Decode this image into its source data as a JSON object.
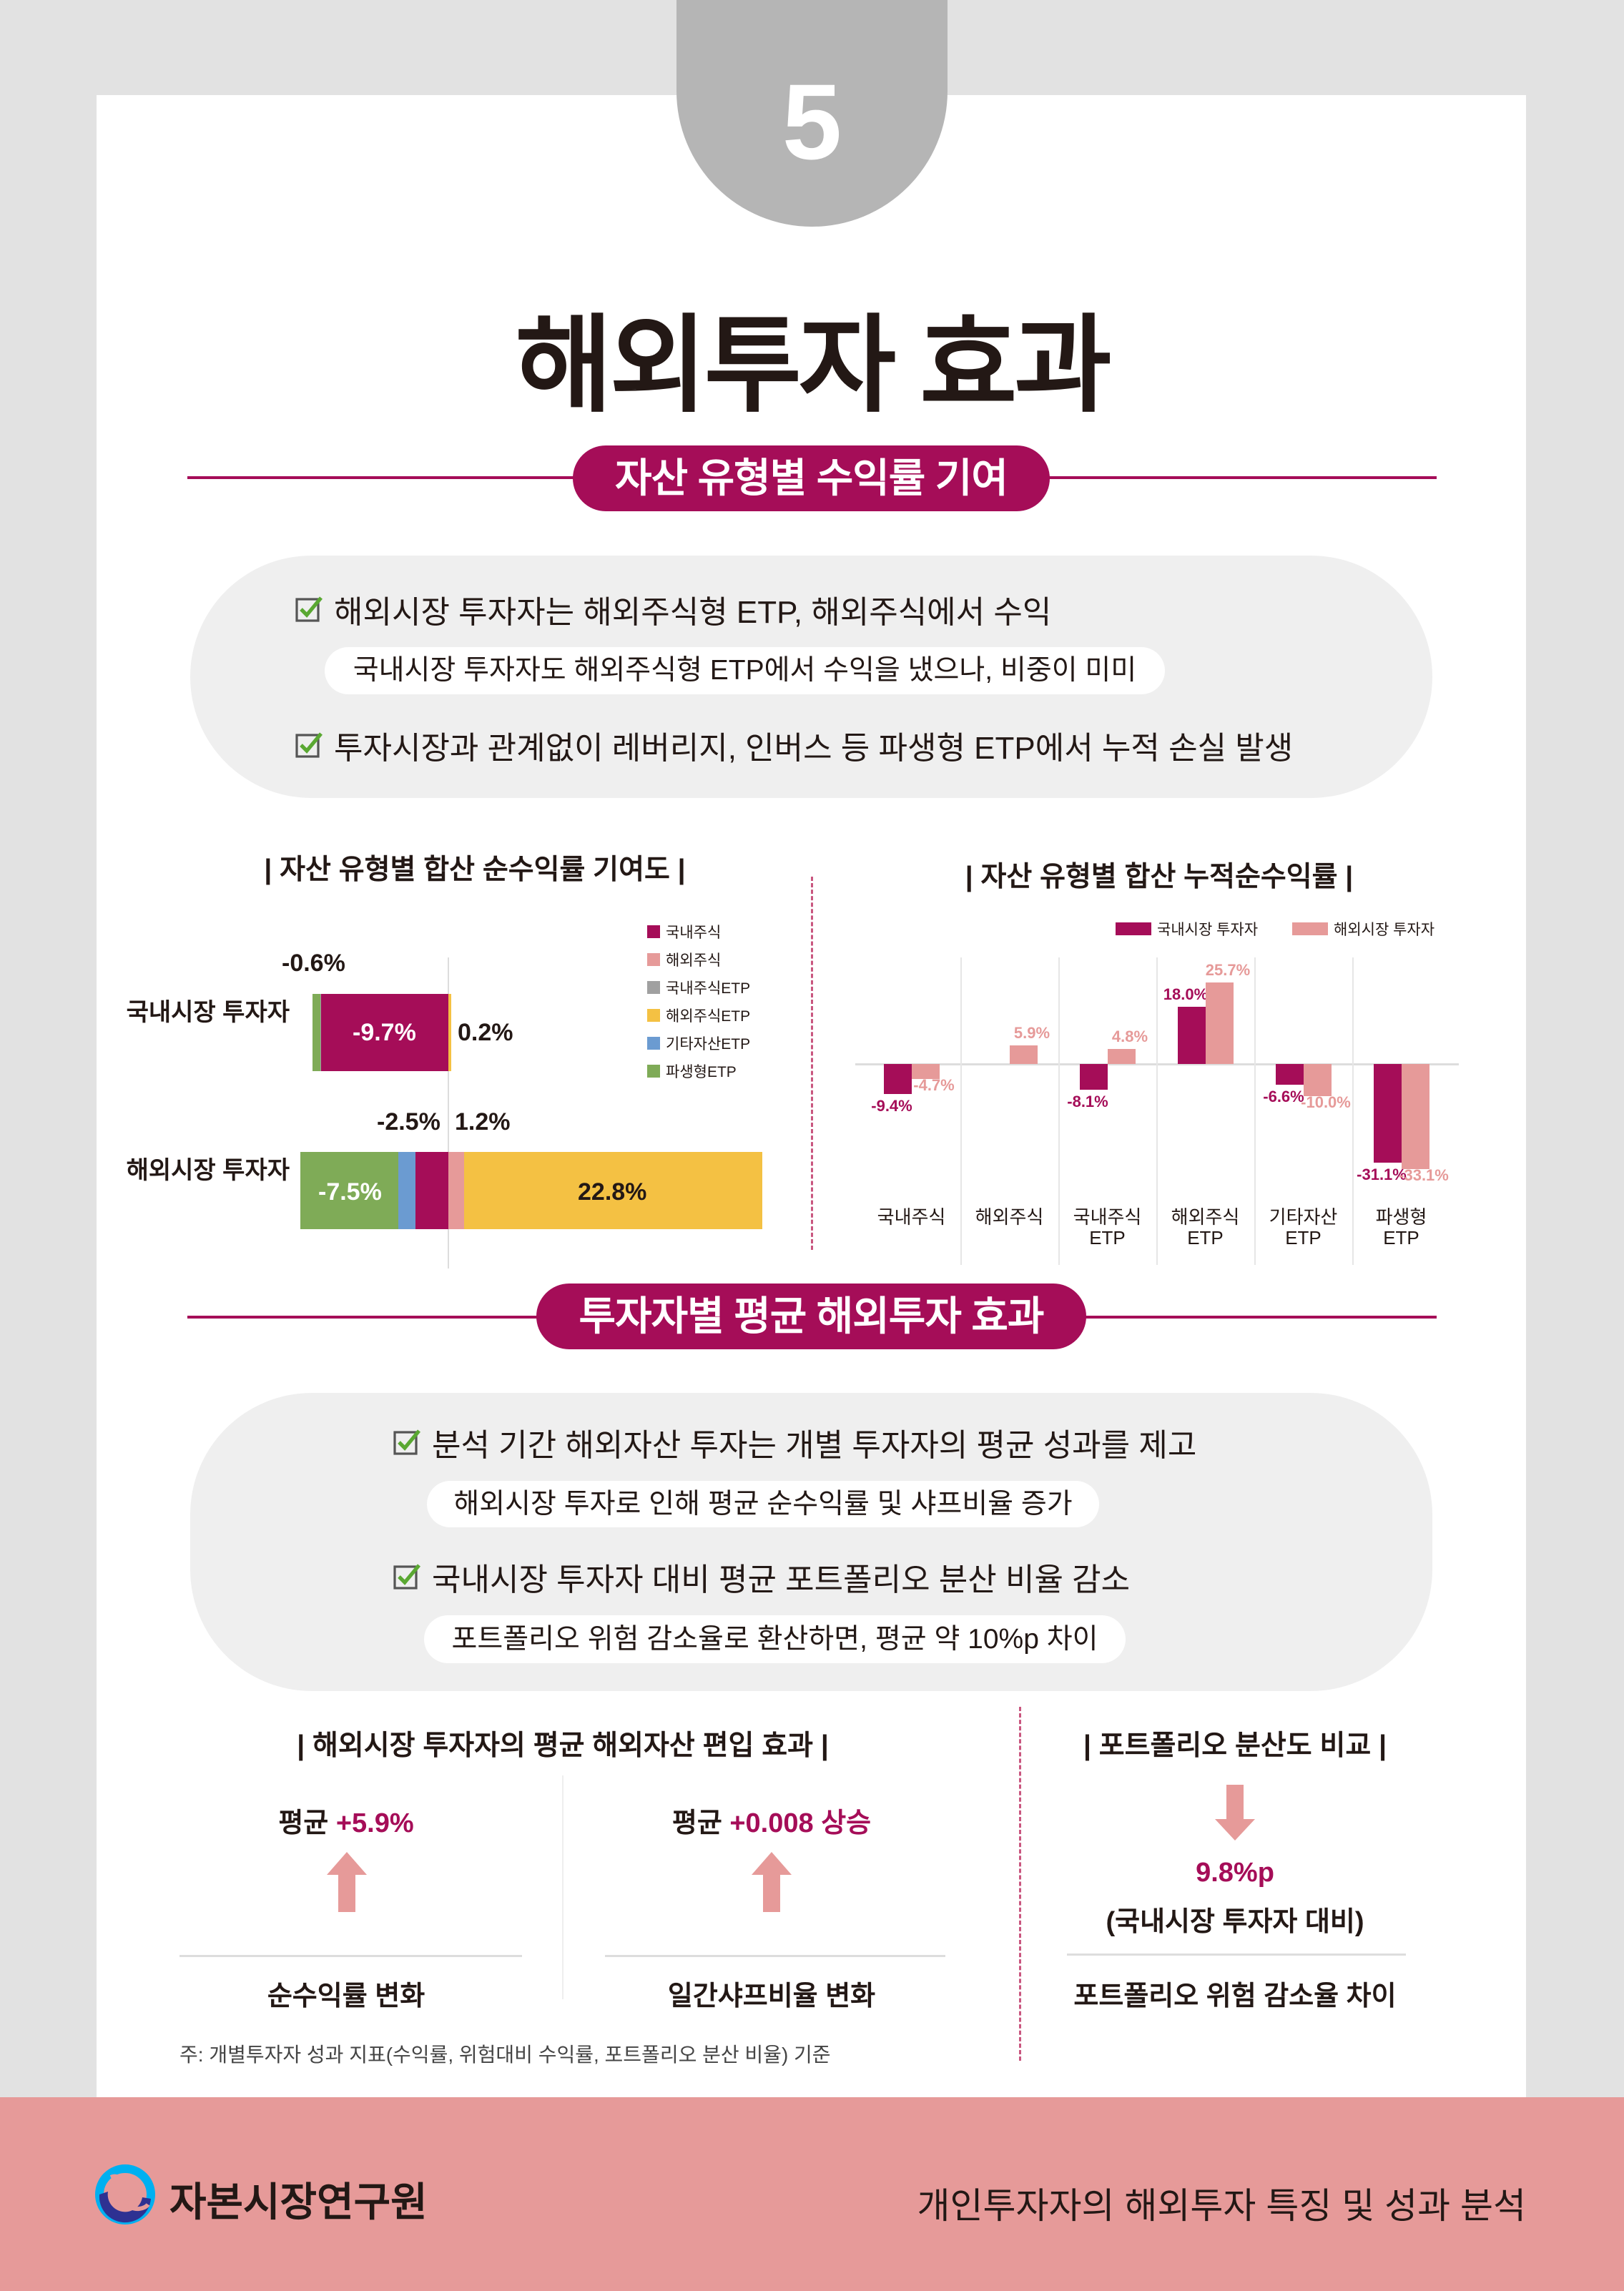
{
  "page_number": "5",
  "title": "해외투자 효과",
  "section1": {
    "header": "자산 유형별 수익률 기여",
    "bullets": [
      {
        "text": "해외시장 투자자는 해외주식형 ETP, 해외주식에서 수익",
        "sub": "국내시장 투자자도 해외주식형 ETP에서 수익을 냈으나, 비중이 미미"
      },
      {
        "text": "투자시장과 관계없이 레버리지, 인버스 등 파생형 ETP에서 누적 손실 발생"
      }
    ]
  },
  "colors": {
    "accent": "#a50d58",
    "pink": "#e69a99",
    "gray": "#a0a0a0",
    "yellow": "#f4c143",
    "blue": "#6b9bd1",
    "green": "#7fab57"
  },
  "chart_data": [
    {
      "type": "bar",
      "title": "| 자산 유형별 합산 순수익률 기여도 |",
      "orientation": "horizontal-stacked",
      "categories": [
        "국내시장 투자자",
        "해외시장 투자자"
      ],
      "legend_position": "top-right",
      "series": [
        {
          "name": "국내주식",
          "color": "#a50d58",
          "values": [
            -9.7,
            -2.5
          ]
        },
        {
          "name": "해외주식",
          "color": "#e69a99",
          "values": [
            0,
            1.2
          ]
        },
        {
          "name": "국내주식ETP",
          "color": "#a0a0a0",
          "values": [
            -0.1,
            0
          ]
        },
        {
          "name": "해외주식ETP",
          "color": "#f4c143",
          "values": [
            0.2,
            22.8
          ]
        },
        {
          "name": "기타자산ETP",
          "color": "#6b9bd1",
          "values": [
            0,
            -1.3
          ]
        },
        {
          "name": "파생형ETP",
          "color": "#7fab57",
          "values": [
            -0.6,
            -7.5
          ]
        }
      ],
      "labels": {
        "r1_green": "-0.6%",
        "r1_purple": "-9.7%",
        "r1_yellow": "0.2%",
        "r2_green": "-7.5%",
        "r2_purple": "-2.5%",
        "r2_pink": "1.2%",
        "r2_yellow": "22.8%"
      }
    },
    {
      "type": "bar",
      "title": "| 자산 유형별 합산 누적순수익률 |",
      "categories": [
        "국내주식",
        "해외주식",
        "국내주식\nETP",
        "해외주식\nETP",
        "기타자산\nETP",
        "파생형\nETP"
      ],
      "legend_position": "top-right",
      "series": [
        {
          "name": "국내시장 투자자",
          "color": "#a50d58",
          "values": [
            -9.4,
            null,
            -8.1,
            18.0,
            -6.6,
            -31.1
          ],
          "labels": [
            "-9.4%",
            "",
            "-8.1%",
            "18.0%",
            "-6.6%",
            "-31.1%"
          ]
        },
        {
          "name": "해외시장 투자자",
          "color": "#e69a99",
          "values": [
            -4.7,
            5.9,
            4.8,
            25.7,
            -10.0,
            -33.1
          ],
          "labels": [
            "-4.7%",
            "5.9%",
            "4.8%",
            "25.7%",
            "-10.0%",
            "-33.1%"
          ]
        }
      ]
    }
  ],
  "section2": {
    "header": "투자자별 평균 해외투자 효과",
    "bullets": [
      {
        "text": "분석 기간 해외자산 투자는 개별 투자자의 평균 성과를 제고",
        "sub": "해외시장 투자로 인해 평균 순수익률 및 샤프비율 증가"
      },
      {
        "text": "국내시장 투자자 대비 평균 포트폴리오 분산 비율 감소",
        "sub": "포트폴리오 위험 감소율로 환산하면, 평균 약 10%p 차이"
      }
    ]
  },
  "effects": {
    "left_title": "| 해외시장 투자자의 평균 해외자산 편입 효과 |",
    "right_title": "| 포트폴리오 분산도 비교 |",
    "return": {
      "prefix": "평균 ",
      "value": "+5.9%",
      "label": "순수익률 변화"
    },
    "sharpe": {
      "prefix": "평균 ",
      "value": "+0.008 상승",
      "label": "일간샤프비율 변화"
    },
    "risk": {
      "value": "9.8%p",
      "note": "(국내시장 투자자 대비)",
      "label": "포트폴리오 위험 감소율 차이"
    },
    "footnote": "주: 개별투자자 성과 지표(수익률, 위험대비 수익률, 포트폴리오 분산 비율) 기준"
  },
  "footer": {
    "org": "자본시장연구원",
    "report": "개인투자자의 해외투자 특징 및 성과 분석"
  }
}
